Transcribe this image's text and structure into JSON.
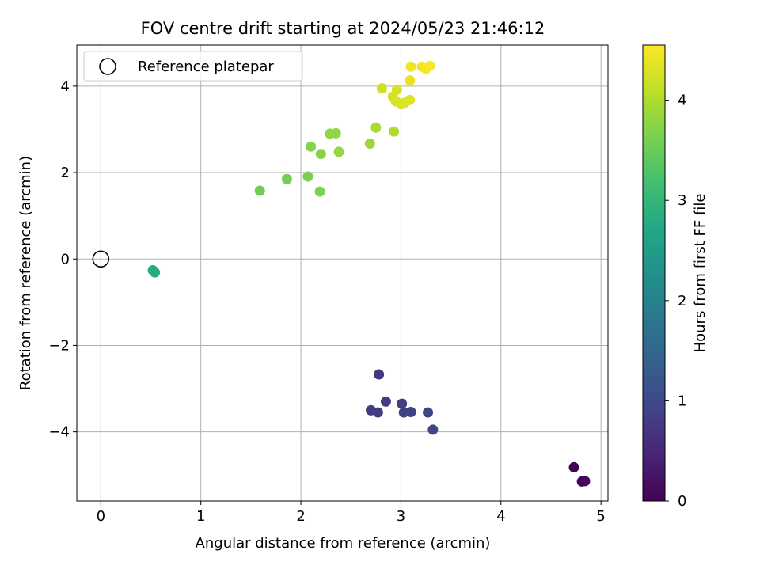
{
  "chart_data": {
    "type": "scatter",
    "title": "FOV centre drift starting at 2024/05/23 21:46:12",
    "xlabel": "Angular distance from reference (arcmin)",
    "ylabel": "Rotation from reference (arcmin)",
    "xlim": [
      -0.24,
      5.07
    ],
    "ylim": [
      -5.6,
      4.95
    ],
    "xticks": [
      0,
      1,
      2,
      3,
      4,
      5
    ],
    "xtick_labels": [
      "0",
      "1",
      "2",
      "3",
      "4",
      "5"
    ],
    "yticks": [
      -4,
      -2,
      0,
      2,
      4
    ],
    "ytick_labels": [
      "−4",
      "−2",
      "0",
      "2",
      "4"
    ],
    "grid": true,
    "legend": {
      "position": "top-left",
      "entries": [
        "Reference platepar"
      ]
    },
    "colorbar": {
      "label": "Hours from first FF file",
      "min": 0,
      "max": 4.55,
      "colormap": "viridis",
      "ticks": [
        0,
        1,
        2,
        3,
        4
      ],
      "tick_labels": [
        "0",
        "1",
        "2",
        "3",
        "4"
      ]
    },
    "reference_point": {
      "x": 0,
      "y": 0
    },
    "points": [
      {
        "x": 4.73,
        "y": -4.82,
        "hours": 0.02
      },
      {
        "x": 4.81,
        "y": -5.15,
        "hours": 0.05
      },
      {
        "x": 4.84,
        "y": -5.14,
        "hours": 0.07
      },
      {
        "x": 2.78,
        "y": -2.67,
        "hours": 0.75
      },
      {
        "x": 2.7,
        "y": -3.5,
        "hours": 0.78
      },
      {
        "x": 2.77,
        "y": -3.55,
        "hours": 0.8
      },
      {
        "x": 2.85,
        "y": -3.3,
        "hours": 0.82
      },
      {
        "x": 3.01,
        "y": -3.35,
        "hours": 0.84
      },
      {
        "x": 3.03,
        "y": -3.55,
        "hours": 0.86
      },
      {
        "x": 3.1,
        "y": -3.54,
        "hours": 0.88
      },
      {
        "x": 3.27,
        "y": -3.55,
        "hours": 0.9
      },
      {
        "x": 3.32,
        "y": -3.95,
        "hours": 0.92
      },
      {
        "x": 0.52,
        "y": -0.26,
        "hours": 2.75
      },
      {
        "x": 0.54,
        "y": -0.31,
        "hours": 2.78
      },
      {
        "x": 1.59,
        "y": 1.58,
        "hours": 3.55
      },
      {
        "x": 1.86,
        "y": 1.85,
        "hours": 3.6
      },
      {
        "x": 2.07,
        "y": 1.91,
        "hours": 3.62
      },
      {
        "x": 2.19,
        "y": 1.56,
        "hours": 3.65
      },
      {
        "x": 2.1,
        "y": 2.6,
        "hours": 3.7
      },
      {
        "x": 2.2,
        "y": 2.43,
        "hours": 3.72
      },
      {
        "x": 2.29,
        "y": 2.9,
        "hours": 3.78
      },
      {
        "x": 2.35,
        "y": 2.91,
        "hours": 3.8
      },
      {
        "x": 2.38,
        "y": 2.48,
        "hours": 3.82
      },
      {
        "x": 2.69,
        "y": 2.67,
        "hours": 3.88
      },
      {
        "x": 2.75,
        "y": 3.04,
        "hours": 3.95
      },
      {
        "x": 2.93,
        "y": 2.95,
        "hours": 4.0
      },
      {
        "x": 2.81,
        "y": 3.95,
        "hours": 4.2
      },
      {
        "x": 2.92,
        "y": 3.76,
        "hours": 4.25
      },
      {
        "x": 2.95,
        "y": 3.65,
        "hours": 4.27
      },
      {
        "x": 2.96,
        "y": 3.92,
        "hours": 4.28
      },
      {
        "x": 3.0,
        "y": 3.58,
        "hours": 4.3
      },
      {
        "x": 3.04,
        "y": 3.62,
        "hours": 4.32
      },
      {
        "x": 3.09,
        "y": 3.68,
        "hours": 4.33
      },
      {
        "x": 3.09,
        "y": 4.13,
        "hours": 4.4
      },
      {
        "x": 3.1,
        "y": 4.45,
        "hours": 4.45
      },
      {
        "x": 3.21,
        "y": 4.45,
        "hours": 4.48
      },
      {
        "x": 3.25,
        "y": 4.4,
        "hours": 4.5
      },
      {
        "x": 3.29,
        "y": 4.47,
        "hours": 4.52
      }
    ]
  }
}
